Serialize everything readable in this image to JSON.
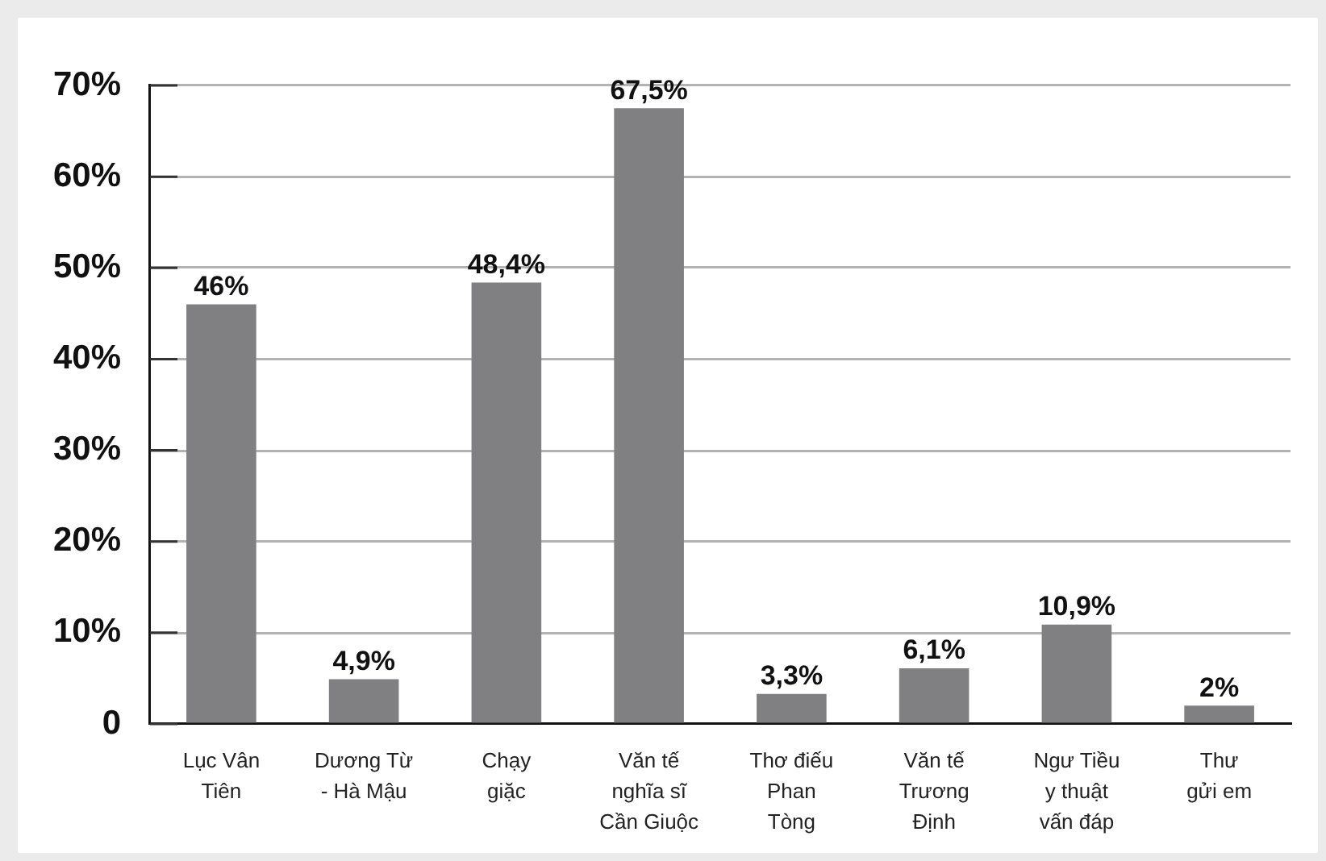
{
  "chart_data": {
    "type": "bar",
    "categories": [
      "Lục Vân\nTiên",
      "Dương Từ\n- Hà Mậu",
      "Chạy\ngiặc",
      "Văn tế\nnghĩa sĩ\nCần Giuộc",
      "Thơ điếu\nPhan\nTòng",
      "Văn tế\nTrương\nĐịnh",
      "Ngư Tiều\ny thuật\nvấn đáp",
      "Thư\ngửi em"
    ],
    "values": [
      46,
      4.9,
      48.4,
      67.5,
      3.3,
      6.1,
      10.9,
      2
    ],
    "value_labels": [
      "46%",
      "4,9%",
      "48,4%",
      "67,5%",
      "3,3%",
      "6,1%",
      "10,9%",
      "2%"
    ],
    "color": "#808082",
    "ylim": [
      0,
      70
    ],
    "yticks": [
      0,
      {
        "value": 10,
        "label": "10%"
      },
      {
        "value": 20,
        "label": "20%"
      },
      {
        "value": 30,
        "label": "30%"
      },
      {
        "value": 40,
        "label": "40%"
      },
      {
        "value": 50,
        "label": "50%"
      },
      {
        "value": 60,
        "label": "60%"
      },
      {
        "value": 70,
        "label": "70%"
      }
    ],
    "grid": "y",
    "legend": false
  }
}
